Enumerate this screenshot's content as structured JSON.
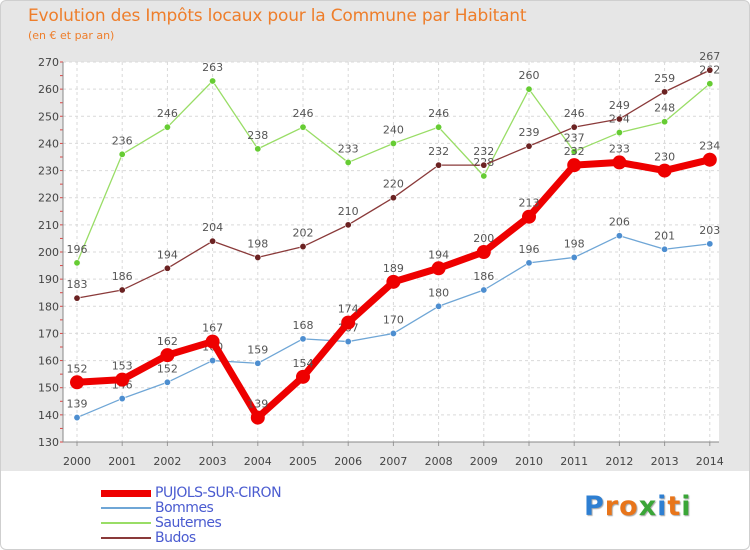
{
  "title": "Evolution des Impôts locaux pour la Commune par Habitant",
  "subtitle": "(en € et par an)",
  "logo": {
    "text": "Proxiti",
    "letters": [
      "P",
      "r",
      "o",
      "x",
      "i",
      "t",
      "i"
    ],
    "colors": [
      "#2e7fd2",
      "#e8751a",
      "#e8751a",
      "#3aa637",
      "#2e7fd2",
      "#e8751a",
      "#3aa637"
    ]
  },
  "chart_data": {
    "type": "line",
    "title": "Evolution des Impôts locaux pour la Commune par Habitant",
    "subtitle": "(en € et par an)",
    "x": [
      "2000",
      "2001",
      "2002",
      "2003",
      "2004",
      "2005",
      "2006",
      "2007",
      "2008",
      "2009",
      "2010",
      "2011",
      "2012",
      "2013",
      "2014"
    ],
    "ylim": [
      130,
      270
    ],
    "yticks": [
      130,
      140,
      150,
      160,
      170,
      180,
      190,
      200,
      210,
      220,
      230,
      240,
      250,
      260,
      270
    ],
    "grid": true,
    "legend_position": "bottom-left",
    "series": [
      {
        "name": "PUJOLS-SUR-CIRON",
        "color": "#ee0000",
        "marker": "#ee0000",
        "emphasis": true,
        "values": [
          152,
          153,
          162,
          167,
          139,
          154,
          174,
          189,
          194,
          200,
          213,
          232,
          233,
          230,
          234
        ]
      },
      {
        "name": "Bommes",
        "color": "#6fa6d6",
        "marker": "#4d8ed0",
        "emphasis": false,
        "values": [
          139,
          146,
          152,
          160,
          159,
          168,
          167,
          170,
          180,
          186,
          196,
          198,
          206,
          201,
          203
        ]
      },
      {
        "name": "Sauternes",
        "color": "#99dd66",
        "marker": "#66cc33",
        "emphasis": false,
        "values": [
          196,
          236,
          246,
          263,
          238,
          246,
          233,
          240,
          246,
          228,
          260,
          237,
          244,
          248,
          262
        ]
      },
      {
        "name": "Budos",
        "color": "#8a3a3a",
        "marker": "#6b2222",
        "emphasis": false,
        "values": [
          183,
          186,
          194,
          204,
          198,
          202,
          210,
          220,
          232,
          232,
          239,
          246,
          249,
          259,
          267
        ]
      }
    ]
  }
}
